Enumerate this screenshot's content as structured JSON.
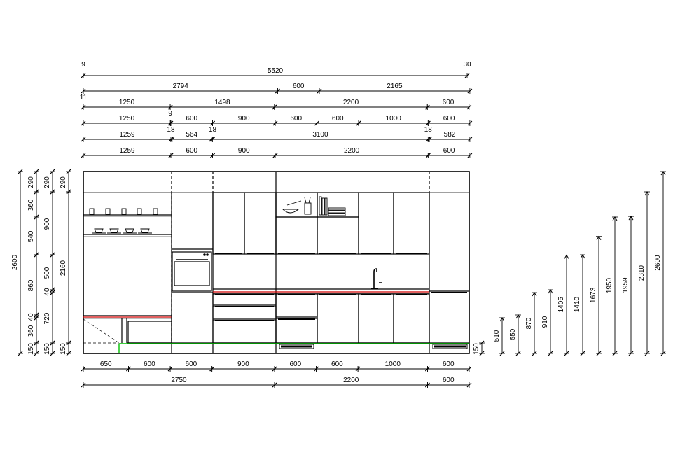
{
  "drawing": {
    "dim_rows": [
      [
        {
          "a": 0,
          "b": 5520,
          "label": "5520"
        }
      ],
      [
        {
          "a": 0,
          "b": 2794,
          "label": "2794"
        },
        {
          "a": 2794,
          "b": 3394,
          "label": "600"
        },
        {
          "a": 3394,
          "b": 5559,
          "label": "2165"
        }
      ],
      [
        {
          "a": 0,
          "b": 1250,
          "label": "1250"
        },
        {
          "a": 1250,
          "b": 2748,
          "label": "1498"
        },
        {
          "a": 2748,
          "b": 4948,
          "label": "2200"
        },
        {
          "a": 4948,
          "b": 5548,
          "label": "600"
        }
      ],
      [
        {
          "a": 0,
          "b": 1250,
          "label": "1250"
        },
        {
          "a": 1259,
          "b": 1859,
          "label": "600"
        },
        {
          "a": 1859,
          "b": 2759,
          "label": "900"
        },
        {
          "a": 2759,
          "b": 3359,
          "label": "600"
        },
        {
          "a": 3359,
          "b": 3959,
          "label": "600"
        },
        {
          "a": 3959,
          "b": 4959,
          "label": "1000"
        },
        {
          "a": 4959,
          "b": 5559,
          "label": "600"
        }
      ],
      [
        {
          "a": 0,
          "b": 1259,
          "label": "1259"
        },
        {
          "a": 1277,
          "b": 1841,
          "label": "564"
        },
        {
          "a": 1859,
          "b": 4959,
          "label": "3100"
        },
        {
          "a": 4977,
          "b": 5559,
          "label": "582"
        }
      ],
      [
        {
          "a": 0,
          "b": 1259,
          "label": "1259"
        },
        {
          "a": 1259,
          "b": 1859,
          "label": "600"
        },
        {
          "a": 1859,
          "b": 2759,
          "label": "900"
        },
        {
          "a": 2759,
          "b": 4959,
          "label": "2200"
        },
        {
          "a": 4959,
          "b": 5559,
          "label": "600"
        }
      ]
    ],
    "bottom_rows": [
      [
        {
          "a": 0,
          "b": 650,
          "label": "650"
        },
        {
          "a": 650,
          "b": 1250,
          "label": "600"
        },
        {
          "a": 1250,
          "b": 1850,
          "label": "600"
        },
        {
          "a": 1850,
          "b": 2750,
          "label": "900"
        },
        {
          "a": 2750,
          "b": 3350,
          "label": "600"
        },
        {
          "a": 3350,
          "b": 3950,
          "label": "600"
        },
        {
          "a": 3950,
          "b": 4950,
          "label": "1000"
        },
        {
          "a": 4950,
          "b": 5550,
          "label": "600"
        }
      ],
      [
        {
          "a": 0,
          "b": 2750,
          "label": "2750"
        },
        {
          "a": 2750,
          "b": 4950,
          "label": "2200"
        },
        {
          "a": 4950,
          "b": 5550,
          "label": "600"
        }
      ]
    ],
    "small_labels": [
      {
        "text": "9",
        "row": 0,
        "at": 0,
        "pos": "above"
      },
      {
        "text": "30",
        "row": 0,
        "at": 5520,
        "pos": "above"
      },
      {
        "text": "11",
        "row": 1,
        "at": 0,
        "pos": "below"
      },
      {
        "text": "9",
        "row": 2,
        "at": 1250,
        "pos": "below"
      },
      {
        "text": "18",
        "row": 3,
        "at": 1259,
        "pos": "below"
      },
      {
        "text": "18",
        "row": 3,
        "at": 1859,
        "pos": "below"
      },
      {
        "text": "18",
        "row": 3,
        "at": 4959,
        "pos": "below"
      }
    ],
    "vertical_chains": [
      {
        "segments": [
          {
            "a": 0,
            "b": 150,
            "label": "150"
          },
          {
            "a": 150,
            "b": 510,
            "label": "360"
          },
          {
            "a": 510,
            "b": 550,
            "label": "40"
          },
          {
            "a": 550,
            "b": 1410,
            "label": "860"
          },
          {
            "a": 1410,
            "b": 1950,
            "label": "540"
          },
          {
            "a": 1950,
            "b": 2310,
            "label": "360"
          },
          {
            "a": 2310,
            "b": 2600,
            "label": "290"
          }
        ]
      },
      {
        "segments": [
          {
            "a": 0,
            "b": 150,
            "label": "150"
          },
          {
            "a": 150,
            "b": 870,
            "label": "720"
          },
          {
            "a": 870,
            "b": 910,
            "label": "40"
          },
          {
            "a": 910,
            "b": 1410,
            "label": "500"
          },
          {
            "a": 1410,
            "b": 2310,
            "label": "900"
          },
          {
            "a": 2310,
            "b": 2600,
            "label": "290"
          }
        ]
      },
      {
        "segments": [
          {
            "a": 0,
            "b": 150,
            "label": "150"
          },
          {
            "a": 150,
            "b": 2310,
            "label": "2160"
          },
          {
            "a": 2310,
            "b": 2600,
            "label": "290"
          }
        ]
      }
    ],
    "overall_height": {
      "a": 0,
      "b": 2600,
      "label": "2600"
    },
    "right_plinth": {
      "a": 0,
      "b": 150,
      "label": "150"
    },
    "heights": [
      {
        "label": "510",
        "value": 510
      },
      {
        "label": "550",
        "value": 550
      },
      {
        "label": "870",
        "value": 870
      },
      {
        "label": "910",
        "value": 910
      },
      {
        "label": "1405",
        "value": 1405
      },
      {
        "label": "1410",
        "value": 1410
      },
      {
        "label": "1673",
        "value": 1673
      },
      {
        "label": "1950",
        "value": 1950
      },
      {
        "label": "1959",
        "value": 1959
      },
      {
        "label": "2310",
        "value": 2310
      },
      {
        "label": "2600",
        "value": 2600
      }
    ],
    "colors": {
      "line": "#000000",
      "plinth": "#00c000",
      "worktop_edge": "#d00000",
      "handle": "#000000"
    }
  }
}
